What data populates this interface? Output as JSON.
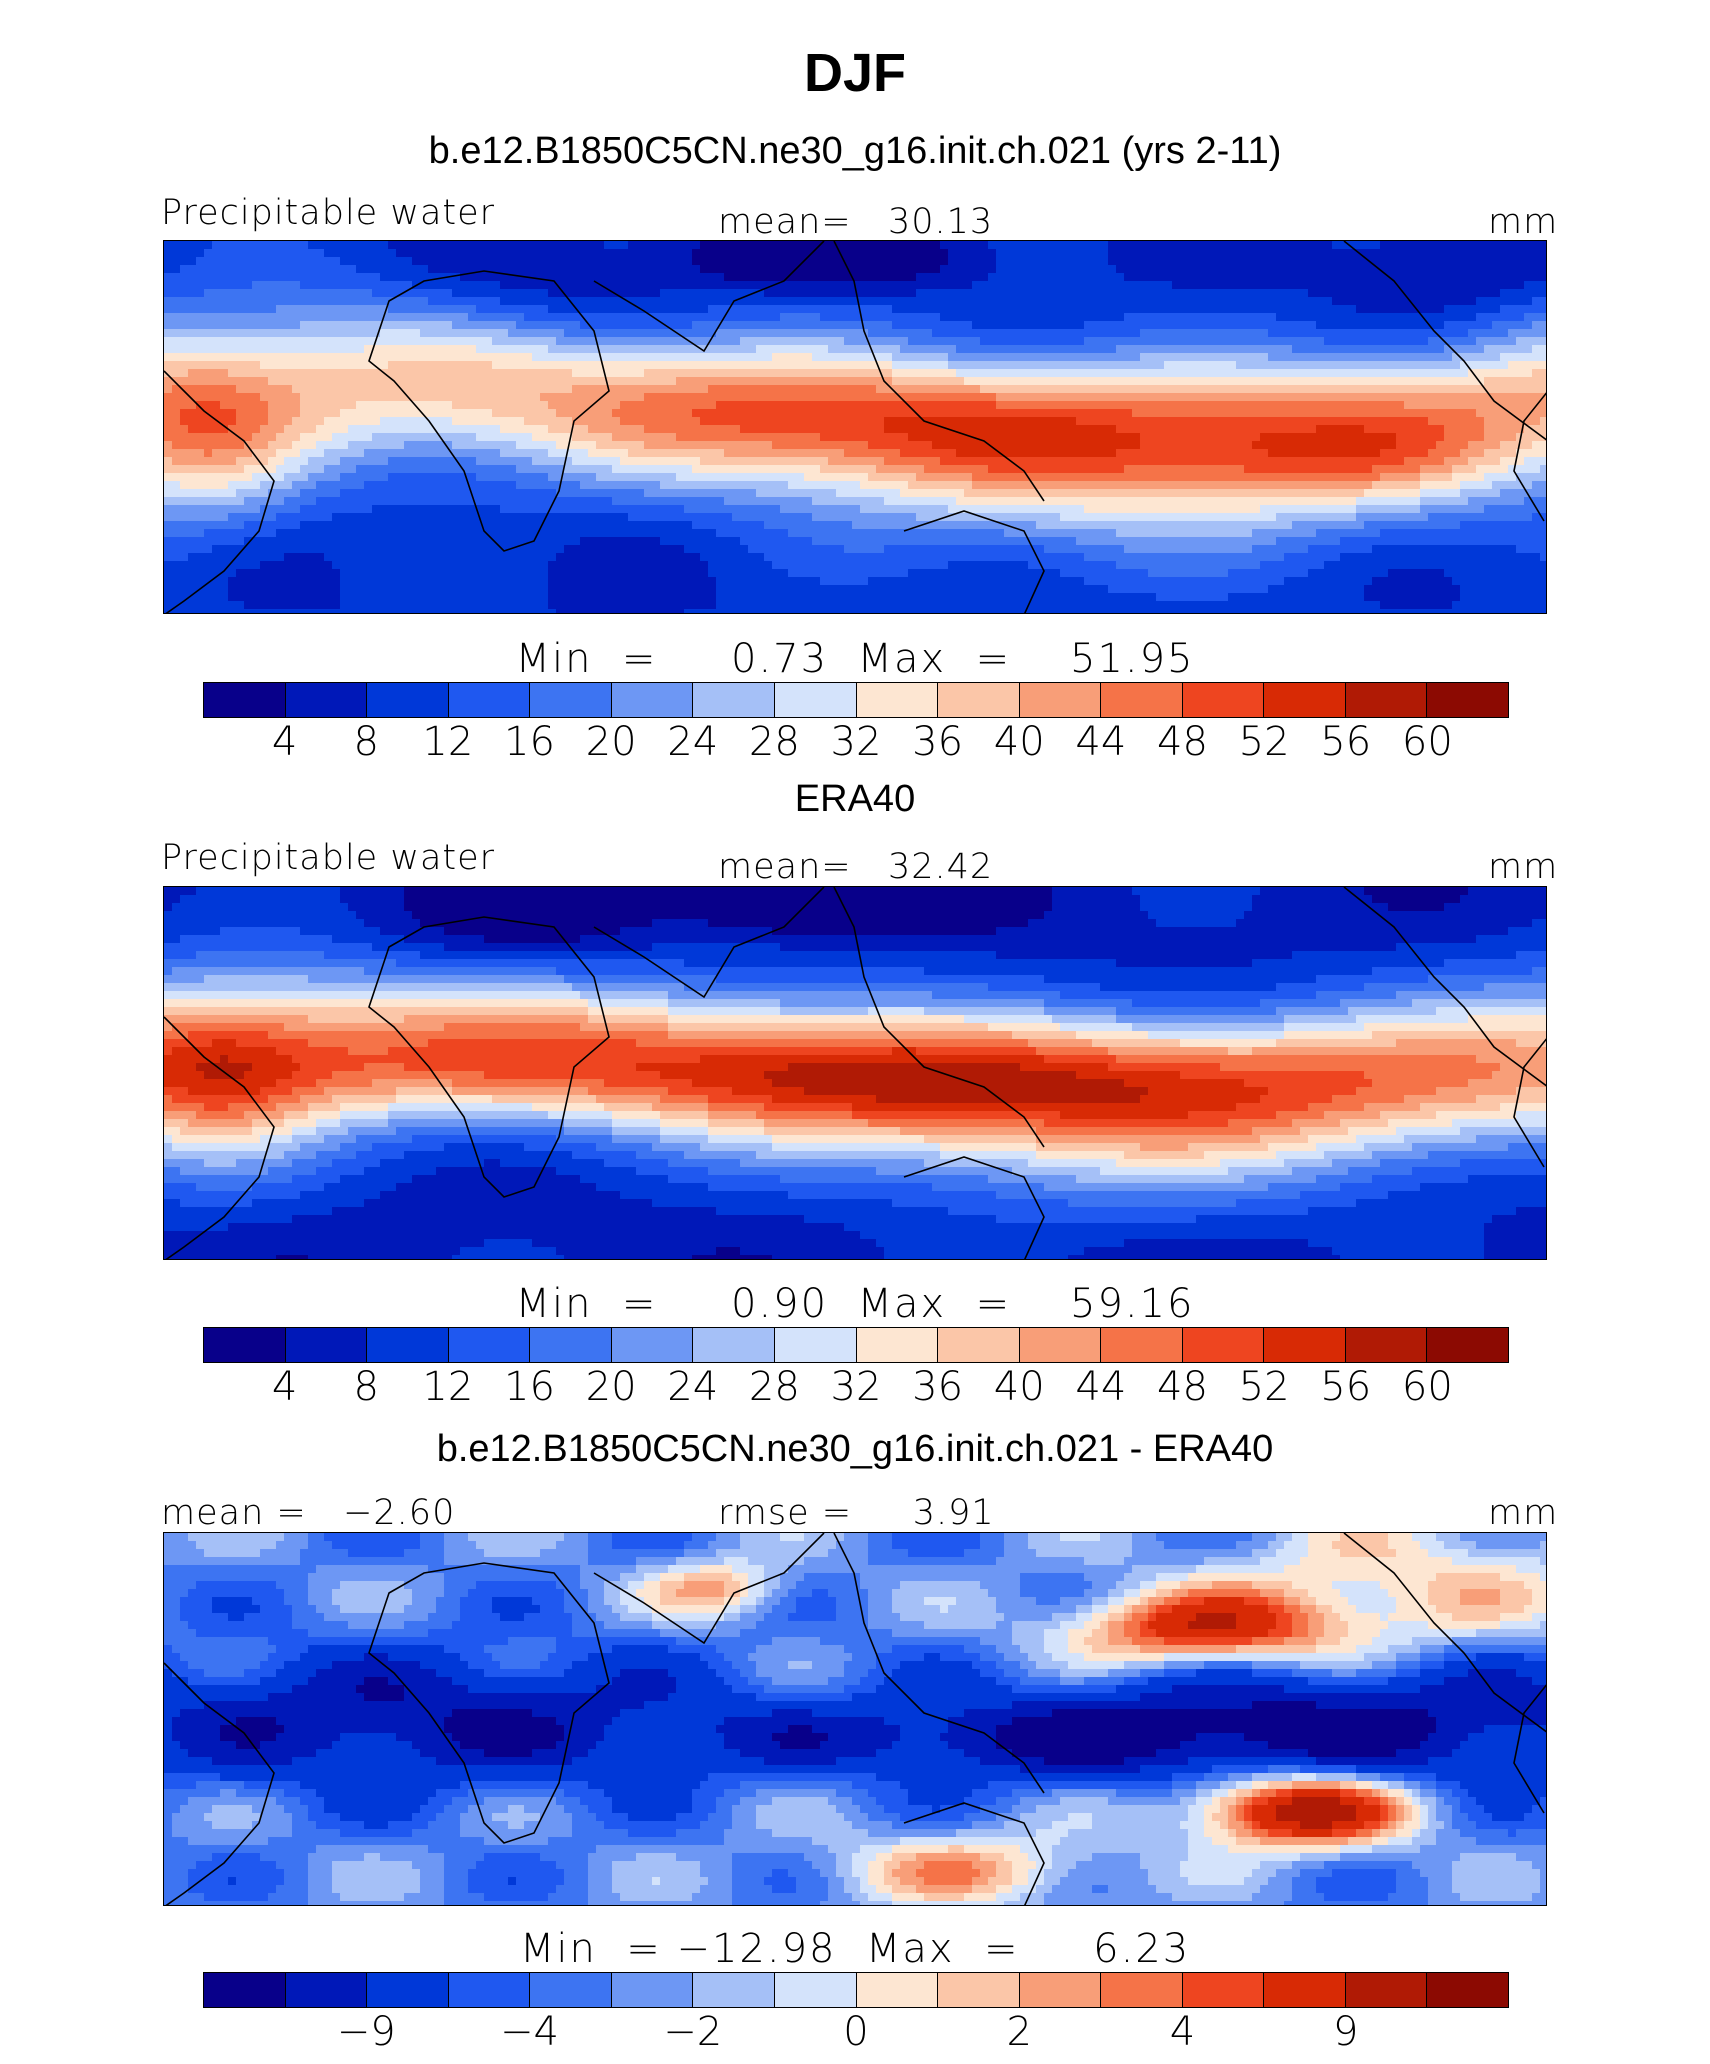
{
  "title": "DJF",
  "panels": [
    {
      "id": "model",
      "title": "b.e12.B1850C5CN.ne30_g16.init.ch.021 (yrs 2-11)",
      "left_label": "Precipitable water",
      "center_label": "mean=   30.13",
      "right_label": "mm",
      "minmax": "Min  =     0.73  Max  =    51.95",
      "min": 0.73,
      "max": 51.95,
      "mean": 30.13,
      "ticks": [
        "4",
        "8",
        "12",
        "16",
        "20",
        "24",
        "28",
        "32",
        "36",
        "40",
        "44",
        "48",
        "52",
        "56",
        "60"
      ]
    },
    {
      "id": "obs",
      "title": "ERA40",
      "left_label": "Precipitable water",
      "center_label": "mean=   32.42",
      "right_label": "mm",
      "minmax": "Min  =     0.90  Max  =    59.16",
      "min": 0.9,
      "max": 59.16,
      "mean": 32.42,
      "ticks": [
        "4",
        "8",
        "12",
        "16",
        "20",
        "24",
        "28",
        "32",
        "36",
        "40",
        "44",
        "48",
        "52",
        "56",
        "60"
      ]
    },
    {
      "id": "diff",
      "title": "b.e12.B1850C5CN.ne30_g16.init.ch.021 - ERA40",
      "left_label": "mean =   −2.60",
      "center_label": "rmse =     3.91",
      "right_label": "mm",
      "minmax": "Min  = −12.98  Max  =     6.23",
      "min": -12.98,
      "max": 6.23,
      "mean": -2.6,
      "rmse": 3.91,
      "ticks": [
        "−9",
        "−4",
        "−2",
        "0",
        "2",
        "4",
        "9"
      ]
    }
  ],
  "colors": [
    "#08008a",
    "#0018b8",
    "#0038d8",
    "#1f58f0",
    "#3d74f2",
    "#6d97f4",
    "#a5c0f7",
    "#d4e3fb",
    "#fde6d2",
    "#fbc6a8",
    "#f89e78",
    "#f57348",
    "#ee4520",
    "#d82a05",
    "#b01a05",
    "#8c0a02"
  ]
}
